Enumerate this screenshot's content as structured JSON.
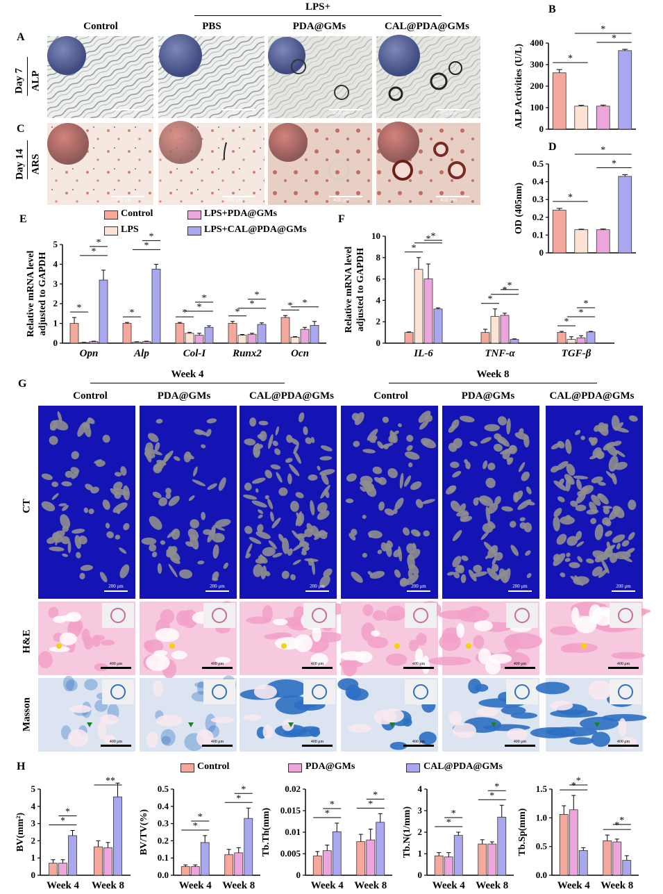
{
  "colors": {
    "control": "#F4A99C",
    "lps": "#FCE3D4",
    "pda": "#EDA6DC",
    "cal": "#A9A7EE",
    "ct_bg": "#1414B4",
    "he_pink": "#F2A0C8",
    "masson_blue": "#2C6FC2"
  },
  "panelA": {
    "letter": "A",
    "lps_header": "LPS+",
    "columns": [
      "Control",
      "PBS",
      "PDA@GMs",
      "CAL@PDA@GMs"
    ],
    "row_label_day": "Day 7",
    "row_label_stain": "ALP",
    "scale_texts": [
      "",
      "",
      "400 μm",
      "400 μm"
    ]
  },
  "panelC": {
    "letter": "C",
    "row_label_day": "Day 14",
    "row_label_stain": "ARS",
    "scale_texts": [
      "400 μm",
      "400 μm",
      "400 μm",
      "400 μm"
    ]
  },
  "panelG": {
    "letter": "G",
    "week4": "Week 4",
    "week8": "Week 8",
    "columns": [
      "Control",
      "PDA@GMs",
      "CAL@PDA@GMs",
      "Control",
      "PDA@GMs",
      "CAL@PDA@GMs"
    ],
    "row_ct": "CT",
    "row_he": "H&E",
    "row_masson": "Masson",
    "ct_scale": "200 μm",
    "hist_scale": "400 μm"
  },
  "legendE": [
    "Control",
    "LPS",
    "LPS+PDA@GMs",
    "LPS+CAL@PDA@GMs"
  ],
  "legendH": [
    "Control",
    "PDA@GMs",
    "CAL@PDA@GMs"
  ],
  "chart_data": [
    {
      "id": "B",
      "type": "bar",
      "letter": "B",
      "ylabel": "ALP Activities (U/L)",
      "ylim": [
        0,
        400
      ],
      "yticks": [
        0,
        100,
        200,
        300,
        400
      ],
      "values": [
        262,
        107,
        107,
        365
      ],
      "errors": [
        15,
        4,
        5,
        6
      ],
      "colors": [
        "#F4A99C",
        "#FCE3D4",
        "#EDA6DC",
        "#A9A7EE"
      ],
      "sig": [
        {
          "from": 0,
          "to": 1,
          "label": "*"
        },
        {
          "from": 2,
          "to": 3,
          "label": "*"
        },
        {
          "from": 1,
          "to": 3,
          "label": "*"
        }
      ]
    },
    {
      "id": "D",
      "type": "bar",
      "letter": "D",
      "ylabel": "OD (405nm)",
      "ylim": [
        0,
        0.5
      ],
      "yticks": [
        "0",
        "0.1",
        "0.2",
        "0.3",
        "0.4",
        "0.5"
      ],
      "values": [
        0.24,
        0.13,
        0.13,
        0.43
      ],
      "errors": [
        0.01,
        0.003,
        0.004,
        0.01
      ],
      "colors": [
        "#F4A99C",
        "#FCE3D4",
        "#EDA6DC",
        "#A9A7EE"
      ],
      "sig": [
        {
          "from": 0,
          "to": 1,
          "label": "*"
        },
        {
          "from": 2,
          "to": 3,
          "label": "*"
        },
        {
          "from": 1,
          "to": 3,
          "label": "*"
        }
      ]
    },
    {
      "id": "E",
      "type": "bar",
      "letter": "E",
      "ylabel": [
        "Relative mRNA level",
        "adjusted to GAPDH"
      ],
      "ylim": [
        0,
        5
      ],
      "yticks": [
        "0",
        "1",
        "2",
        "3",
        "4",
        "5"
      ],
      "categories": [
        "Opn",
        "Alp",
        "Col-I",
        "Runx2",
        "Ocn"
      ],
      "series": [
        {
          "name": "Control",
          "values": [
            1.0,
            1.0,
            1.0,
            1.0,
            1.3
          ],
          "errors": [
            0.3,
            0.05,
            0.05,
            0.1,
            0.1
          ]
        },
        {
          "name": "LPS",
          "values": [
            0.03,
            0.05,
            0.5,
            0.4,
            0.3
          ],
          "errors": [
            0.01,
            0.02,
            0.05,
            0.04,
            0.03
          ]
        },
        {
          "name": "LPS+PDA@GMs",
          "values": [
            0.08,
            0.08,
            0.4,
            0.45,
            0.7
          ],
          "errors": [
            0.02,
            0.02,
            0.1,
            0.05,
            0.1
          ]
        },
        {
          "name": "LPS+CAL@PDA@GMs",
          "values": [
            3.2,
            3.75,
            0.8,
            0.95,
            0.9
          ],
          "errors": [
            0.5,
            0.25,
            0.08,
            0.08,
            0.2
          ]
        }
      ],
      "colors": [
        "#F4A99C",
        "#FCE3D4",
        "#EDA6DC",
        "#A9A7EE"
      ],
      "sig": [
        {
          "group": 0,
          "from": 0,
          "to": 1
        },
        {
          "group": 0,
          "from": 1,
          "to": 3
        },
        {
          "group": 0,
          "from": 2,
          "to": 3
        },
        {
          "group": 1,
          "from": 0,
          "to": 1
        },
        {
          "group": 1,
          "from": 1,
          "to": 3
        },
        {
          "group": 1,
          "from": 2,
          "to": 3
        },
        {
          "group": 2,
          "from": 0,
          "to": 1
        },
        {
          "group": 2,
          "from": 1,
          "to": 3
        },
        {
          "group": 2,
          "from": 2,
          "to": 3
        },
        {
          "group": 3,
          "from": 0,
          "to": 1
        },
        {
          "group": 3,
          "from": 1,
          "to": 3
        },
        {
          "group": 3,
          "from": 2,
          "to": 3
        },
        {
          "group": 4,
          "from": 0,
          "to": 1
        },
        {
          "group": 4,
          "from": 1,
          "to": 3
        }
      ]
    },
    {
      "id": "F",
      "type": "bar",
      "letter": "F",
      "ylabel": [
        "Relative mRNA level",
        "adjusted to GAPDH"
      ],
      "ylim": [
        0,
        10
      ],
      "yticks": [
        "0",
        "2",
        "4",
        "6",
        "8",
        "10"
      ],
      "categories": [
        "IL-6",
        "TNF-α",
        "TGF-β"
      ],
      "series": [
        {
          "name": "Control",
          "values": [
            1.0,
            1.0,
            1.0
          ],
          "errors": [
            0.05,
            0.3,
            0.1
          ]
        },
        {
          "name": "LPS",
          "values": [
            6.9,
            2.5,
            0.35
          ],
          "errors": [
            1.1,
            0.7,
            0.25
          ]
        },
        {
          "name": "LPS+PDA@GMs",
          "values": [
            6.0,
            2.6,
            0.5
          ],
          "errors": [
            1.4,
            0.2,
            0.2
          ]
        },
        {
          "name": "LPS+CAL@PDA@GMs",
          "values": [
            3.2,
            0.35,
            1.05
          ],
          "errors": [
            0.1,
            0.05,
            0.05
          ]
        }
      ],
      "colors": [
        "#F4A99C",
        "#FCE3D4",
        "#EDA6DC",
        "#A9A7EE"
      ],
      "sig": [
        {
          "group": 0,
          "from": 0,
          "to": 1
        },
        {
          "group": 0,
          "from": 1,
          "to": 3
        },
        {
          "group": 0,
          "from": 2,
          "to": 3
        },
        {
          "group": 1,
          "from": 0,
          "to": 1
        },
        {
          "group": 1,
          "from": 1,
          "to": 3
        },
        {
          "group": 1,
          "from": 2,
          "to": 3
        },
        {
          "group": 2,
          "from": 0,
          "to": 1
        },
        {
          "group": 2,
          "from": 1,
          "to": 3
        },
        {
          "group": 2,
          "from": 2,
          "to": 3
        }
      ]
    },
    {
      "id": "H1",
      "type": "bar",
      "letter": "H",
      "ylabel": "BV(mm²)",
      "ylim": [
        0,
        5
      ],
      "yticks": [
        "0",
        "1",
        "2",
        "3",
        "4",
        "5"
      ],
      "categories": [
        "Week 4",
        "Week 8"
      ],
      "series": [
        {
          "name": "Control",
          "values": [
            0.7,
            1.65
          ],
          "errors": [
            0.2,
            0.35
          ]
        },
        {
          "name": "PDA@GMs",
          "values": [
            0.7,
            1.6
          ],
          "errors": [
            0.2,
            0.3
          ]
        },
        {
          "name": "CAL@PDA@GMs",
          "values": [
            2.3,
            4.55
          ],
          "errors": [
            0.3,
            0.8
          ]
        }
      ],
      "colors": [
        "#F4A99C",
        "#EDA6DC",
        "#A9A7EE"
      ],
      "sig": [
        {
          "group": 0,
          "from": 0,
          "to": 2
        },
        {
          "group": 0,
          "from": 1,
          "to": 2
        },
        {
          "group": 1,
          "from": 0,
          "to": 2
        },
        {
          "group": 1,
          "from": 1,
          "to": 2
        }
      ]
    },
    {
      "id": "H2",
      "type": "bar",
      "ylabel": "BV/TV(%)",
      "ylim": [
        0,
        0.5
      ],
      "yticks": [
        "0.0",
        "0.1",
        "0.2",
        "0.3",
        "0.4",
        "0.5"
      ],
      "categories": [
        "Week 4",
        "Week 8"
      ],
      "series": [
        {
          "name": "Control",
          "values": [
            0.05,
            0.12
          ],
          "errors": [
            0.01,
            0.03
          ]
        },
        {
          "name": "PDA@GMs",
          "values": [
            0.05,
            0.13
          ],
          "errors": [
            0.01,
            0.03
          ]
        },
        {
          "name": "CAL@PDA@GMs",
          "values": [
            0.19,
            0.33
          ],
          "errors": [
            0.04,
            0.06
          ]
        }
      ],
      "colors": [
        "#F4A99C",
        "#EDA6DC",
        "#A9A7EE"
      ],
      "sig": [
        {
          "group": 0,
          "from": 0,
          "to": 2
        },
        {
          "group": 0,
          "from": 1,
          "to": 2
        },
        {
          "group": 1,
          "from": 0,
          "to": 2
        },
        {
          "group": 1,
          "from": 1,
          "to": 2
        }
      ]
    },
    {
      "id": "H3",
      "type": "bar",
      "ylabel": "Tb.Th(mm)",
      "ylim": [
        0,
        0.02
      ],
      "yticks": [
        "0",
        "0.005",
        "0.01",
        "0.015",
        "0.02"
      ],
      "categories": [
        "Week 4",
        "Week 8"
      ],
      "series": [
        {
          "name": "Control",
          "values": [
            0.0045,
            0.0078
          ],
          "errors": [
            0.001,
            0.0017
          ]
        },
        {
          "name": "PDA@GMs",
          "values": [
            0.0057,
            0.0082
          ],
          "errors": [
            0.0013,
            0.0025
          ]
        },
        {
          "name": "CAL@PDA@GMs",
          "values": [
            0.0101,
            0.0123
          ],
          "errors": [
            0.002,
            0.002
          ]
        }
      ],
      "colors": [
        "#F4A99C",
        "#EDA6DC",
        "#A9A7EE"
      ],
      "sig": [
        {
          "group": 0,
          "from": 0,
          "to": 2
        },
        {
          "group": 0,
          "from": 1,
          "to": 2
        },
        {
          "group": 1,
          "from": 0,
          "to": 2
        },
        {
          "group": 1,
          "from": 1,
          "to": 2
        }
      ]
    },
    {
      "id": "H4",
      "type": "bar",
      "ylabel": "Tb.N(1/mm)",
      "ylim": [
        0,
        4
      ],
      "yticks": [
        "0",
        "1",
        "2",
        "3",
        "4"
      ],
      "categories": [
        "Week 4",
        "Week 8"
      ],
      "series": [
        {
          "name": "Control",
          "values": [
            0.9,
            1.45
          ],
          "errors": [
            0.15,
            0.2
          ]
        },
        {
          "name": "PDA@GMs",
          "values": [
            0.85,
            1.45
          ],
          "errors": [
            0.2,
            0.1
          ]
        },
        {
          "name": "CAL@PDA@GMs",
          "values": [
            1.85,
            2.7
          ],
          "errors": [
            0.15,
            0.55
          ]
        }
      ],
      "colors": [
        "#F4A99C",
        "#EDA6DC",
        "#A9A7EE"
      ],
      "sig": [
        {
          "group": 0,
          "from": 0,
          "to": 2
        },
        {
          "group": 0,
          "from": 1,
          "to": 2
        },
        {
          "group": 1,
          "from": 0,
          "to": 2
        },
        {
          "group": 1,
          "from": 1,
          "to": 2
        }
      ]
    },
    {
      "id": "H5",
      "type": "bar",
      "ylabel": "Tb.Sp(mm)",
      "ylim": [
        0,
        1.5
      ],
      "yticks": [
        "0.0",
        "0.5",
        "1.0",
        "1.5"
      ],
      "categories": [
        "Week 4",
        "Week 8"
      ],
      "series": [
        {
          "name": "Control",
          "values": [
            1.06,
            0.6
          ],
          "errors": [
            0.15,
            0.1
          ]
        },
        {
          "name": "PDA@GMs",
          "values": [
            1.14,
            0.58
          ],
          "errors": [
            0.25,
            0.05
          ]
        },
        {
          "name": "CAL@PDA@GMs",
          "values": [
            0.43,
            0.26
          ],
          "errors": [
            0.05,
            0.08
          ]
        }
      ],
      "colors": [
        "#F4A99C",
        "#EDA6DC",
        "#A9A7EE"
      ],
      "sig": [
        {
          "group": 0,
          "from": 0,
          "to": 2
        },
        {
          "group": 0,
          "from": 1,
          "to": 2
        },
        {
          "group": 1,
          "from": 0,
          "to": 2
        },
        {
          "group": 1,
          "from": 1,
          "to": 2
        }
      ]
    }
  ]
}
